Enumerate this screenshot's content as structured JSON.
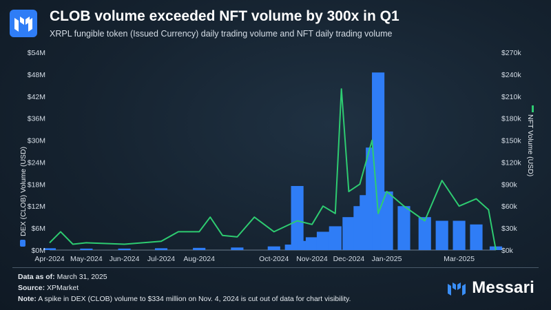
{
  "header": {
    "title": "CLOB volume exceeded NFT volume by 300x in Q1",
    "subtitle": "XRPL fungible token (Issued Currency) daily trading volume and NFT daily trading volume"
  },
  "footer": {
    "data_as_of_label": "Data as of:",
    "data_as_of_value": "March 31, 2025",
    "source_label": "Source:",
    "source_value": "XPMarket",
    "note_label": "Note:",
    "note_value": "A spike in DEX (CLOB) volume to $334 million on Nov. 4, 2024 is cut out of data for chart visibility."
  },
  "brand": {
    "name": "Messari"
  },
  "colors": {
    "dex": "#2f7df6",
    "nft": "#2ecc71",
    "accent": "#3a8ef6"
  },
  "chart_data": {
    "type": "bar+line",
    "x_range": [
      "2024-04-01",
      "2025-03-31"
    ],
    "x_tick_labels": [
      "Apr-2024",
      "May-2024",
      "Jun-2024",
      "Jul-2024",
      "Aug-2024",
      "Oct-2024",
      "Nov-2024",
      "Dec-2024",
      "Jan-2025",
      "Mar-2025"
    ],
    "x_tick_dates": [
      "2024-04-01",
      "2024-05-01",
      "2024-06-01",
      "2024-07-01",
      "2024-08-01",
      "2024-10-01",
      "2024-11-01",
      "2024-12-01",
      "2025-01-01",
      "2025-03-01"
    ],
    "y_left": {
      "label": "DEX (CLOB) Volume (USD)",
      "range": [
        0,
        54000000
      ],
      "tick_labels": [
        "$0M",
        "$6M",
        "$12M",
        "$18M",
        "$24M",
        "$30M",
        "$36M",
        "$42M",
        "$48M",
        "$54M"
      ]
    },
    "y_right": {
      "label": "NFT Volume (USD)",
      "range": [
        0,
        270000
      ],
      "tick_labels": [
        "$0k",
        "$30k",
        "$60k",
        "$90k",
        "$120k",
        "$150k",
        "$180k",
        "$210k",
        "$240k",
        "$270k"
      ]
    },
    "series": [
      {
        "name": "DEX (CLOB) Volume (USD)",
        "kind": "bar",
        "axis": "left",
        "points": [
          [
            "2024-04-01",
            500000
          ],
          [
            "2024-05-01",
            400000
          ],
          [
            "2024-06-01",
            400000
          ],
          [
            "2024-07-01",
            500000
          ],
          [
            "2024-08-01",
            600000
          ],
          [
            "2024-09-01",
            700000
          ],
          [
            "2024-10-01",
            1000000
          ],
          [
            "2024-10-15",
            1500000
          ],
          [
            "2024-10-20",
            17500000
          ],
          [
            "2024-10-25",
            2500000
          ],
          [
            "2024-11-01",
            3500000
          ],
          [
            "2024-11-10",
            5000000
          ],
          [
            "2024-11-20",
            6500000
          ],
          [
            "2024-12-01",
            9000000
          ],
          [
            "2024-12-10",
            12000000
          ],
          [
            "2024-12-15",
            15000000
          ],
          [
            "2024-12-20",
            28000000
          ],
          [
            "2024-12-25",
            48500000
          ],
          [
            "2025-01-01",
            16000000
          ],
          [
            "2025-01-15",
            12000000
          ],
          [
            "2025-02-01",
            9000000
          ],
          [
            "2025-02-15",
            8000000
          ],
          [
            "2025-03-01",
            8000000
          ],
          [
            "2025-03-15",
            7000000
          ],
          [
            "2025-03-31",
            1000000
          ]
        ]
      },
      {
        "name": "NFT Volume (USD)",
        "kind": "line",
        "axis": "right",
        "points": [
          [
            "2024-04-01",
            10000
          ],
          [
            "2024-04-10",
            25000
          ],
          [
            "2024-04-20",
            8000
          ],
          [
            "2024-05-01",
            10000
          ],
          [
            "2024-06-01",
            8000
          ],
          [
            "2024-07-01",
            12000
          ],
          [
            "2024-07-15",
            25000
          ],
          [
            "2024-08-01",
            25000
          ],
          [
            "2024-08-10",
            45000
          ],
          [
            "2024-08-20",
            20000
          ],
          [
            "2024-09-01",
            18000
          ],
          [
            "2024-09-15",
            45000
          ],
          [
            "2024-10-01",
            25000
          ],
          [
            "2024-10-20",
            40000
          ],
          [
            "2024-11-01",
            35000
          ],
          [
            "2024-11-10",
            60000
          ],
          [
            "2024-11-20",
            50000
          ],
          [
            "2024-11-25",
            220000
          ],
          [
            "2024-12-01",
            80000
          ],
          [
            "2024-12-10",
            90000
          ],
          [
            "2024-12-20",
            150000
          ],
          [
            "2024-12-25",
            50000
          ],
          [
            "2025-01-01",
            80000
          ],
          [
            "2025-01-15",
            60000
          ],
          [
            "2025-02-01",
            40000
          ],
          [
            "2025-02-15",
            95000
          ],
          [
            "2025-03-01",
            60000
          ],
          [
            "2025-03-15",
            70000
          ],
          [
            "2025-03-25",
            55000
          ],
          [
            "2025-03-31",
            0
          ]
        ]
      }
    ],
    "grid": false,
    "legend": "axis-titles"
  }
}
